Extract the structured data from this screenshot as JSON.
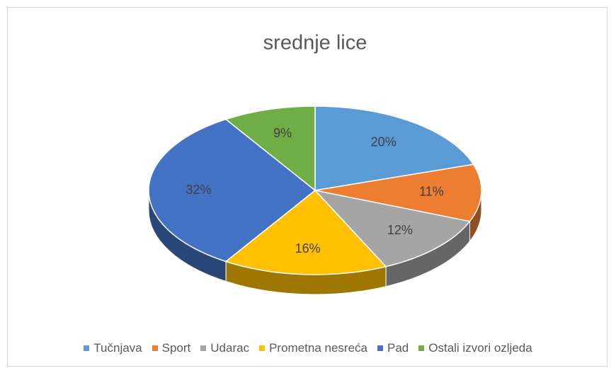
{
  "chart_data": {
    "type": "pie",
    "title": "srednje lice",
    "categories": [
      "Tučnjava",
      "Sport",
      "Udarac",
      "Prometna nesreća",
      "Pad",
      "Ostali izvori ozljeda"
    ],
    "values": [
      20,
      11,
      12,
      16,
      32,
      9
    ],
    "value_labels": [
      "20%",
      "11%",
      "12%",
      "16%",
      "32%",
      "9%"
    ],
    "colors": [
      "#5b9bd5",
      "#ed7d31",
      "#a5a5a5",
      "#ffc000",
      "#4472c4",
      "#70ad47"
    ],
    "legend": "bottom"
  }
}
